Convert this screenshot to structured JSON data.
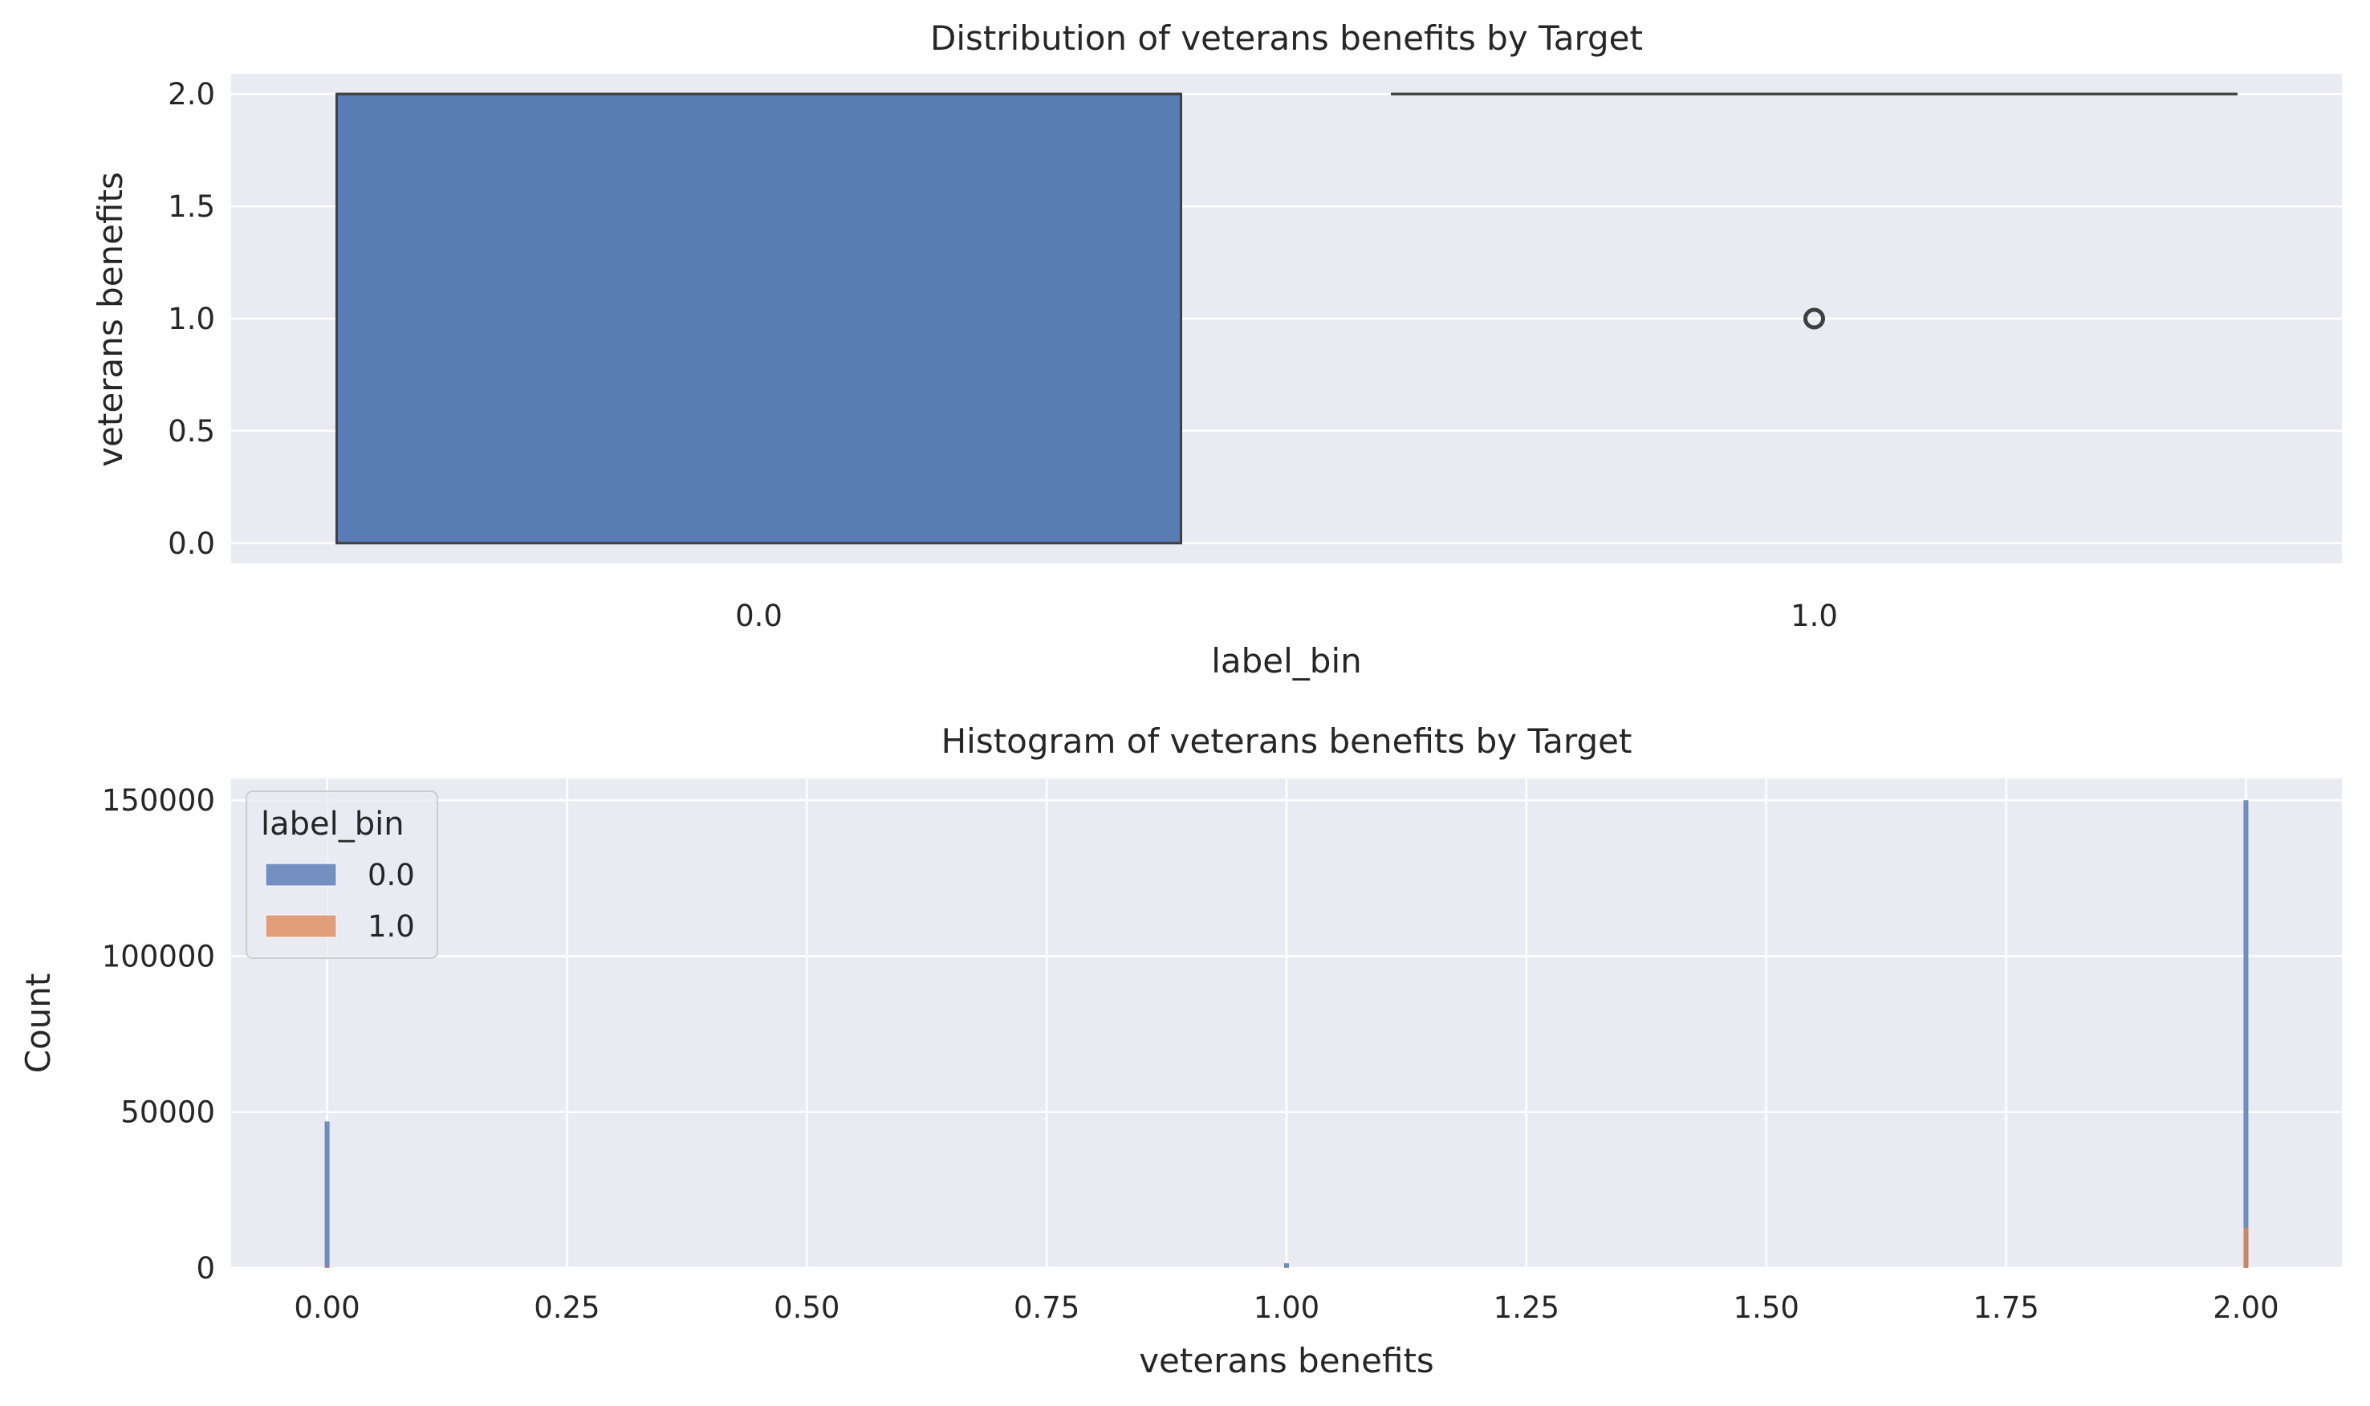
{
  "colors": {
    "axes_bg": "#eaeaf2",
    "grid": "#ffffff",
    "series_0": "#4c72b0",
    "series_1": "#dd8452",
    "edge": "#3f3f3f",
    "text": "#262626"
  },
  "chart_data": [
    {
      "type": "box",
      "title": "Distribution of veterans benefits by Target",
      "xlabel": "label_bin",
      "ylabel": "veterans benefits",
      "categories": [
        "0.0",
        "1.0"
      ],
      "boxes": [
        {
          "category": "0.0",
          "whislo": 0,
          "q1": 0,
          "median": 2,
          "q3": 2,
          "whishi": 2,
          "fliers": []
        },
        {
          "category": "1.0",
          "whislo": 2,
          "q1": 2,
          "median": 2,
          "q3": 2,
          "whishi": 2,
          "fliers": [
            1
          ]
        }
      ],
      "ylim": [
        -0.09,
        2.09
      ],
      "yticks": [
        0,
        0.5,
        1,
        1.5,
        2
      ],
      "ytick_labels": [
        "0.0",
        "0.5",
        "1.0",
        "1.5",
        "2.0"
      ],
      "grid": true
    },
    {
      "type": "histogram",
      "title": "Histogram of veterans benefits by Target",
      "xlabel": "veterans benefits",
      "ylabel": "Count",
      "legend": {
        "title": "label_bin",
        "entries": [
          "0.0",
          "1.0"
        ],
        "placement": "upper-left"
      },
      "xlim": [
        -0.1,
        2.1
      ],
      "ylim": [
        0,
        157000
      ],
      "xticks": [
        0,
        0.25,
        0.5,
        0.75,
        1,
        1.25,
        1.5,
        1.75,
        2
      ],
      "xtick_labels": [
        "0.00",
        "0.25",
        "0.50",
        "0.75",
        "1.00",
        "1.25",
        "1.50",
        "1.75",
        "2.00"
      ],
      "yticks": [
        0,
        50000,
        100000,
        150000
      ],
      "ytick_labels": [
        "0",
        "50000",
        "100000",
        "150000"
      ],
      "bin_width": 0.005,
      "series": [
        {
          "name": "0.0",
          "x": [
            0,
            1,
            2
          ],
          "values": [
            47000,
            1500,
            150000
          ]
        },
        {
          "name": "1.0",
          "x": [
            0,
            1,
            2
          ],
          "values": [
            500,
            200,
            13000
          ]
        }
      ],
      "grid": true
    }
  ]
}
